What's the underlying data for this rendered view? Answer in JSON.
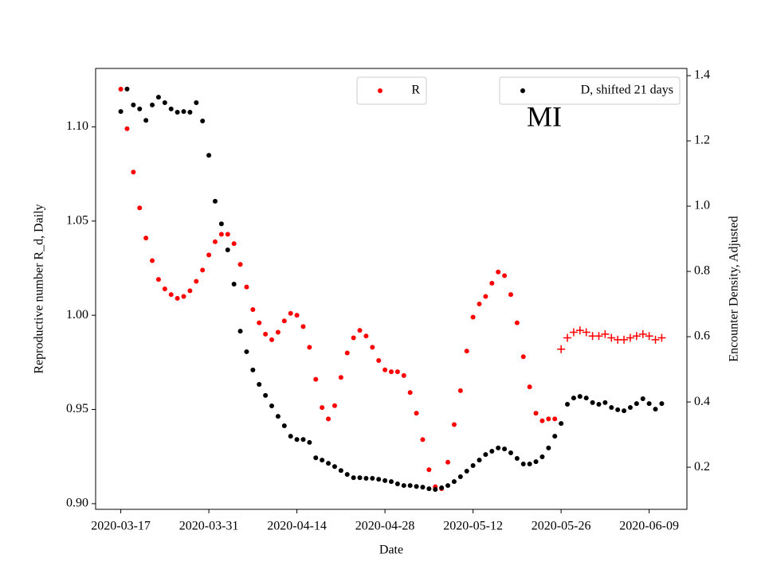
{
  "chart_data": {
    "type": "scatter",
    "annotation": "MI",
    "xlabel": "Date",
    "ylabel": "Reproductive number R_d, Daily",
    "y2label": "Encounter Density, Adjusted",
    "ylabel_color": "#ff0000",
    "xlim": [
      "2020-03-13",
      "2020-06-15"
    ],
    "xticks": [
      "2020-03-17",
      "2020-03-31",
      "2020-04-14",
      "2020-04-28",
      "2020-05-12",
      "2020-05-26",
      "2020-06-09"
    ],
    "ylim": [
      0.897,
      1.131
    ],
    "yticks": [
      {
        "value": 0.9,
        "label": "0.90"
      },
      {
        "value": 0.95,
        "label": "0.95"
      },
      {
        "value": 1,
        "label": "1.00"
      },
      {
        "value": 1.05,
        "label": "1.05"
      },
      {
        "value": 1.1,
        "label": "1.10"
      }
    ],
    "y2lim": [
      0.071,
      1.422
    ],
    "y2ticks": [
      0.2,
      0.4,
      0.6,
      0.8,
      {
        "value": 1,
        "label": "1.0"
      },
      1.2,
      1.4
    ],
    "x": [
      "2020-03-17",
      "2020-03-18",
      "2020-03-19",
      "2020-03-20",
      "2020-03-21",
      "2020-03-22",
      "2020-03-23",
      "2020-03-24",
      "2020-03-25",
      "2020-03-26",
      "2020-03-27",
      "2020-03-28",
      "2020-03-29",
      "2020-03-30",
      "2020-03-31",
      "2020-04-01",
      "2020-04-02",
      "2020-04-03",
      "2020-04-04",
      "2020-04-05",
      "2020-04-06",
      "2020-04-07",
      "2020-04-08",
      "2020-04-09",
      "2020-04-10",
      "2020-04-11",
      "2020-04-12",
      "2020-04-13",
      "2020-04-14",
      "2020-04-15",
      "2020-04-16",
      "2020-04-17",
      "2020-04-18",
      "2020-04-19",
      "2020-04-20",
      "2020-04-21",
      "2020-04-22",
      "2020-04-23",
      "2020-04-24",
      "2020-04-25",
      "2020-04-26",
      "2020-04-27",
      "2020-04-28",
      "2020-04-29",
      "2020-04-30",
      "2020-05-01",
      "2020-05-02",
      "2020-05-03",
      "2020-05-04",
      "2020-05-05",
      "2020-05-06",
      "2020-05-07",
      "2020-05-08",
      "2020-05-09",
      "2020-05-10",
      "2020-05-11",
      "2020-05-12",
      "2020-05-13",
      "2020-05-14",
      "2020-05-15",
      "2020-05-16",
      "2020-05-17",
      "2020-05-18",
      "2020-05-19",
      "2020-05-20",
      "2020-05-21",
      "2020-05-22",
      "2020-05-23",
      "2020-05-24",
      "2020-05-25",
      "2020-05-26",
      "2020-05-27",
      "2020-05-28",
      "2020-05-29",
      "2020-05-30",
      "2020-05-31",
      "2020-06-01",
      "2020-06-02",
      "2020-06-03",
      "2020-06-04",
      "2020-06-05",
      "2020-06-06",
      "2020-06-07",
      "2020-06-08",
      "2020-06-09",
      "2020-06-10",
      "2020-06-11"
    ],
    "series": [
      {
        "name": "R",
        "color": "#ff0000",
        "marker": "o",
        "legend": "upper center",
        "values": [
          1.12,
          1.099,
          1.076,
          1.057,
          1.041,
          1.029,
          1.019,
          1.014,
          1.011,
          1.009,
          1.01,
          1.013,
          1.018,
          1.024,
          1.032,
          1.039,
          1.043,
          1.043,
          1.038,
          1.027,
          1.015,
          1.003,
          0.996,
          0.99,
          0.987,
          0.991,
          0.997,
          1.001,
          1.0,
          0.994,
          0.983,
          0.966,
          0.951,
          0.945,
          0.952,
          0.967,
          0.98,
          0.988,
          0.992,
          0.989,
          0.983,
          0.976,
          0.971,
          0.97,
          0.97,
          0.968,
          0.959,
          0.948,
          0.934,
          0.918,
          0.909,
          0.908,
          0.922,
          0.942,
          0.96,
          0.981,
          0.999,
          1.006,
          1.01,
          1.017,
          1.023,
          1.021,
          1.011,
          0.996,
          0.978,
          0.962,
          0.948,
          0.944,
          0.945,
          0.945,
          null,
          null,
          null,
          null,
          null,
          null,
          null,
          null,
          null,
          null,
          null,
          null,
          null,
          null,
          null,
          null,
          null
        ]
      },
      {
        "color": "#ff0000",
        "marker": "+",
        "values": [
          null,
          null,
          null,
          null,
          null,
          null,
          null,
          null,
          null,
          null,
          null,
          null,
          null,
          null,
          null,
          null,
          null,
          null,
          null,
          null,
          null,
          null,
          null,
          null,
          null,
          null,
          null,
          null,
          null,
          null,
          null,
          null,
          null,
          null,
          null,
          null,
          null,
          null,
          null,
          null,
          null,
          null,
          null,
          null,
          null,
          null,
          null,
          null,
          null,
          null,
          null,
          null,
          null,
          null,
          null,
          null,
          null,
          null,
          null,
          null,
          null,
          null,
          null,
          null,
          null,
          null,
          null,
          null,
          null,
          null,
          0.982,
          0.988,
          0.991,
          0.992,
          0.991,
          0.989,
          0.989,
          0.99,
          0.988,
          0.987,
          0.987,
          0.988,
          0.989,
          0.99,
          0.989,
          0.987,
          0.988
        ]
      },
      {
        "name": "D, shifted 21 days",
        "color": "#000000",
        "marker": "o",
        "axis": "y2",
        "legend": "upper right",
        "values": [
          1.29,
          1.359,
          1.31,
          1.298,
          1.263,
          1.31,
          1.334,
          1.317,
          1.298,
          1.288,
          1.29,
          1.288,
          1.317,
          1.261,
          1.156,
          1.015,
          0.946,
          0.866,
          0.761,
          0.617,
          0.554,
          0.498,
          0.454,
          0.42,
          0.388,
          0.356,
          0.327,
          0.295,
          0.285,
          0.285,
          0.276,
          0.229,
          0.222,
          0.212,
          0.202,
          0.19,
          0.178,
          0.168,
          0.168,
          0.166,
          0.166,
          0.163,
          0.159,
          0.156,
          0.149,
          0.144,
          0.144,
          0.141,
          0.139,
          0.134,
          0.132,
          0.137,
          0.144,
          0.156,
          0.171,
          0.188,
          0.205,
          0.222,
          0.239,
          0.249,
          0.259,
          0.256,
          0.244,
          0.227,
          0.21,
          0.21,
          0.217,
          0.232,
          0.259,
          0.295,
          0.334,
          0.393,
          0.412,
          0.417,
          0.412,
          0.398,
          0.393,
          0.398,
          0.383,
          0.376,
          0.373,
          0.383,
          0.395,
          0.41,
          0.395,
          0.378,
          0.395
        ]
      }
    ]
  }
}
